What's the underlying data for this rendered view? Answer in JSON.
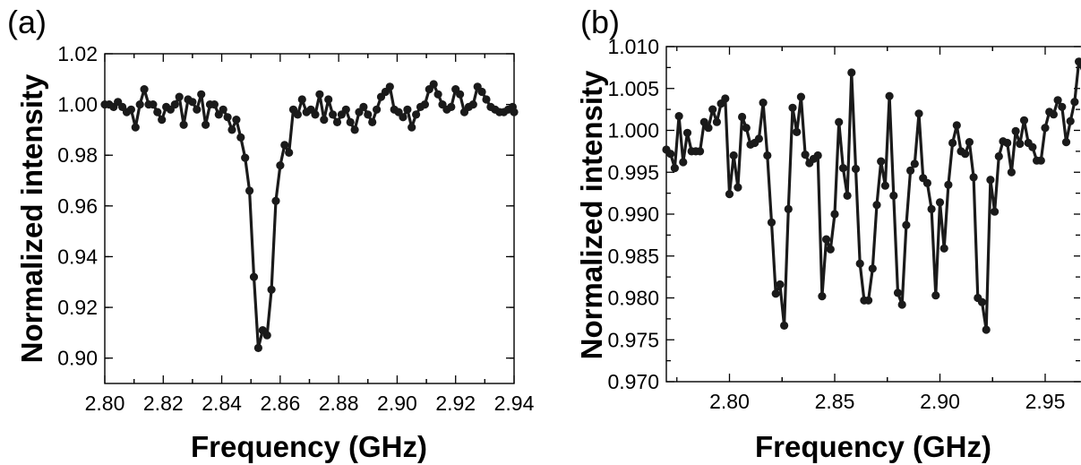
{
  "chart_data": [
    {
      "panel_label": "(a)",
      "type": "line",
      "xlabel": "Frequency (GHz)",
      "ylabel": "Normalized intensity",
      "xlim": [
        2.8,
        2.94
      ],
      "ylim": [
        0.89,
        1.02
      ],
      "xticks": [
        2.8,
        2.82,
        2.84,
        2.86,
        2.88,
        2.9,
        2.92,
        2.94
      ],
      "xtick_labels": [
        "2.80",
        "2.82",
        "2.84",
        "2.86",
        "2.88",
        "2.90",
        "2.92",
        "2.94"
      ],
      "yticks": [
        0.9,
        0.92,
        0.94,
        0.96,
        0.98,
        1.0,
        1.02
      ],
      "ytick_labels": [
        "0.90",
        "0.92",
        "0.94",
        "0.96",
        "0.98",
        "1.00",
        "1.02"
      ],
      "grid": false,
      "markers": true,
      "series": [
        {
          "x": [
            2.8,
            2.8015,
            2.803,
            2.8045,
            2.806,
            2.8075,
            2.809,
            2.8105,
            2.812,
            2.8135,
            2.815,
            2.8165,
            2.818,
            2.8195,
            2.821,
            2.8225,
            2.824,
            2.8255,
            2.827,
            2.8285,
            2.83,
            2.8315,
            2.833,
            2.8345,
            2.836,
            2.8375,
            2.839,
            2.8405,
            2.842,
            2.8435,
            2.845,
            2.8465,
            2.848,
            2.8495,
            2.851,
            2.8525,
            2.854,
            2.8555,
            2.857,
            2.8585,
            2.86,
            2.8615,
            2.863,
            2.8645,
            2.866,
            2.8675,
            2.869,
            2.8705,
            2.872,
            2.8735,
            2.875,
            2.8765,
            2.878,
            2.8795,
            2.881,
            2.8825,
            2.884,
            2.8855,
            2.887,
            2.8885,
            2.89,
            2.8915,
            2.893,
            2.8945,
            2.896,
            2.8975,
            2.899,
            2.9005,
            2.902,
            2.9035,
            2.905,
            2.9065,
            2.908,
            2.9095,
            2.911,
            2.9125,
            2.914,
            2.9155,
            2.917,
            2.9185,
            2.92,
            2.9215,
            2.923,
            2.9245,
            2.926,
            2.9275,
            2.929,
            2.9305,
            2.932,
            2.9335,
            2.935,
            2.9365,
            2.938,
            2.9395,
            2.94
          ],
          "y": [
            1.0,
            1.0,
            0.999,
            1.001,
            0.999,
            0.997,
            0.998,
            0.991,
            1.0,
            1.006,
            1.0,
            1.0,
            0.997,
            0.994,
            0.999,
            0.998,
            1.0,
            1.003,
            0.992,
            1.002,
            1.001,
            0.998,
            1.004,
            0.992,
            1.0,
            1.0,
            0.996,
            0.998,
            0.995,
            0.99,
            0.994,
            0.987,
            0.979,
            0.966,
            0.932,
            0.904,
            0.911,
            0.909,
            0.927,
            0.962,
            0.976,
            0.984,
            0.981,
            0.998,
            0.996,
            1.002,
            0.997,
            0.998,
            0.996,
            1.004,
            0.994,
            1.002,
            0.996,
            0.993,
            0.996,
            0.998,
            0.993,
            0.99,
            0.997,
            0.999,
            0.996,
            0.993,
            0.998,
            1.003,
            1.005,
            1.007,
            0.998,
            0.997,
            0.995,
            0.998,
            0.991,
            0.996,
            0.999,
            1.0,
            1.006,
            1.008,
            1.004,
            1.0,
            0.998,
            0.999,
            1.006,
            1.004,
            0.997,
            0.999,
            1.0,
            1.007,
            1.005,
            1.002,
            0.999,
            0.998,
            0.997,
            0.997,
            0.998,
            0.999,
            0.997
          ]
        }
      ]
    },
    {
      "panel_label": "(b)",
      "type": "line",
      "xlabel": "Frequency (GHz)",
      "ylabel": "Normalized intensity",
      "xlim": [
        2.77,
        2.97
      ],
      "ylim": [
        0.97,
        1.01
      ],
      "xticks": [
        2.8,
        2.85,
        2.9,
        2.95
      ],
      "xtick_labels": [
        "2.80",
        "2.85",
        "2.90",
        "2.95"
      ],
      "yticks": [
        0.97,
        0.975,
        0.98,
        0.985,
        0.99,
        0.995,
        1.0,
        1.005,
        1.01
      ],
      "ytick_labels": [
        "0.970",
        "0.975",
        "0.980",
        "0.985",
        "0.990",
        "0.995",
        "1.000",
        "1.005",
        "1.010"
      ],
      "grid": false,
      "markers": true,
      "series": [
        {
          "x": [
            2.77,
            2.772,
            2.774,
            2.776,
            2.778,
            2.78,
            2.782,
            2.784,
            2.786,
            2.788,
            2.79,
            2.792,
            2.794,
            2.796,
            2.798,
            2.8,
            2.802,
            2.804,
            2.806,
            2.808,
            2.81,
            2.812,
            2.814,
            2.816,
            2.818,
            2.82,
            2.822,
            2.824,
            2.826,
            2.828,
            2.83,
            2.832,
            2.834,
            2.836,
            2.838,
            2.84,
            2.842,
            2.844,
            2.846,
            2.848,
            2.85,
            2.852,
            2.854,
            2.856,
            2.858,
            2.86,
            2.862,
            2.864,
            2.866,
            2.868,
            2.87,
            2.872,
            2.874,
            2.876,
            2.878,
            2.88,
            2.882,
            2.884,
            2.886,
            2.888,
            2.89,
            2.892,
            2.894,
            2.896,
            2.898,
            2.9,
            2.902,
            2.904,
            2.906,
            2.908,
            2.91,
            2.912,
            2.914,
            2.916,
            2.918,
            2.92,
            2.922,
            2.924,
            2.926,
            2.928,
            2.93,
            2.932,
            2.934,
            2.936,
            2.938,
            2.94,
            2.942,
            2.944,
            2.946,
            2.948,
            2.95,
            2.952,
            2.954,
            2.956,
            2.958,
            2.96,
            2.962,
            2.964,
            2.966,
            2.968,
            2.97
          ],
          "y": [
            0.9977,
            0.9972,
            0.9955,
            1.0017,
            0.9962,
            0.9997,
            0.9975,
            0.9975,
            0.9975,
            1.001,
            1.0003,
            1.0025,
            1.001,
            1.0032,
            1.0038,
            0.9924,
            0.997,
            0.9932,
            1.0016,
            1.0003,
            0.9983,
            0.9985,
            0.999,
            1.0033,
            0.997,
            0.989,
            0.9805,
            0.9816,
            0.9767,
            0.9906,
            1.0027,
            0.9998,
            1.004,
            0.9971,
            0.9961,
            0.9966,
            0.997,
            0.9802,
            0.987,
            0.9858,
            0.99,
            1.001,
            0.9955,
            0.9922,
            1.0069,
            0.9954,
            0.9841,
            0.9797,
            0.9797,
            0.9835,
            0.9911,
            0.9963,
            0.9934,
            1.0041,
            0.9922,
            0.9806,
            0.9792,
            0.9887,
            0.9952,
            0.996,
            1.002,
            0.9943,
            0.9937,
            0.9906,
            0.9803,
            0.9914,
            0.9859,
            0.9935,
            0.9985,
            1.0006,
            0.9975,
            0.9972,
            0.9986,
            0.9944,
            0.98,
            0.9795,
            0.9762,
            0.9941,
            0.9903,
            0.9969,
            0.9987,
            0.9985,
            0.995,
            0.9999,
            0.9984,
            1.0012,
            0.9985,
            0.998,
            0.9964,
            0.9964,
            1.0003,
            1.0022,
            1.0019,
            1.0036,
            1.0028,
            0.9986,
            1.0011,
            1.0034,
            1.0082,
            1.007,
            1.0055
          ]
        }
      ]
    }
  ]
}
